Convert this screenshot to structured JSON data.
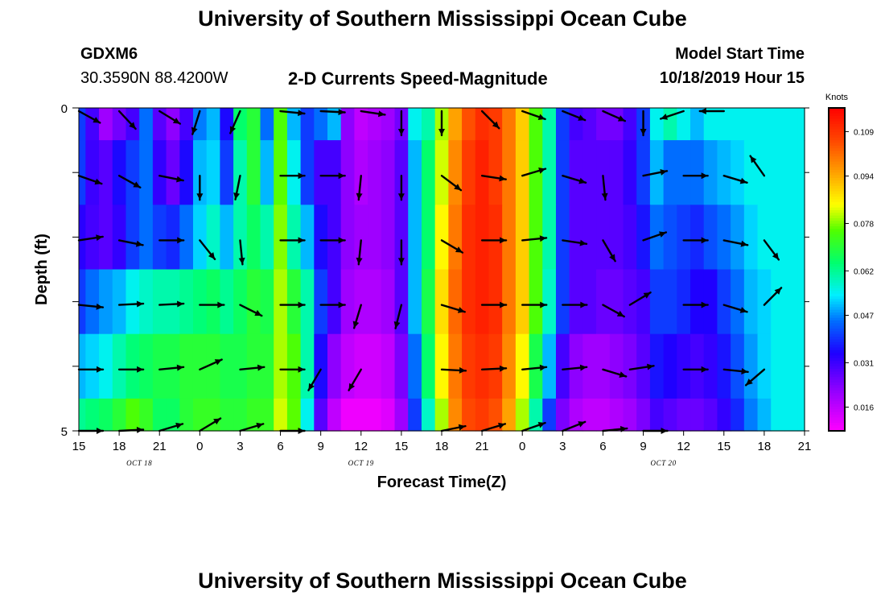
{
  "header": {
    "top_title": "University of Southern Mississippi Ocean Cube",
    "bottom_title": "University of Southern Mississippi Ocean Cube",
    "station_id": "GDXM6",
    "location": "30.3590N 88.4200W",
    "plot_title": "2-D Currents Speed-Magnitude",
    "start_label": "Model Start Time",
    "start_value": "10/18/2019 Hour 15"
  },
  "chart_data": {
    "type": "heatmap",
    "title": "2-D Currents Speed-Magnitude",
    "xlabel": "Forecast Time(Z)",
    "ylabel": "Depth (ft)",
    "ylim": [
      0,
      5
    ],
    "y_tick_labels": [
      "0",
      "",
      "",
      "",
      "",
      "5"
    ],
    "x_tick_labels": [
      "15",
      "18",
      "21",
      "0",
      "3",
      "6",
      "9",
      "12",
      "15",
      "18",
      "21",
      "0",
      "3",
      "6",
      "9",
      "12",
      "15",
      "18",
      "21"
    ],
    "x_range_hours": [
      0,
      54
    ],
    "date_labels": [
      {
        "text": "OCT 18",
        "hour": 4.5
      },
      {
        "text": "OCT 19",
        "hour": 21
      },
      {
        "text": "OCT 20",
        "hour": 43.5
      }
    ],
    "colorbar": {
      "label": "Knots",
      "ticks": [
        "0.109",
        "0.094",
        "0.078",
        "0.062",
        "0.047",
        "0.031",
        "0.016"
      ],
      "tick_values": [
        0.109,
        0.094,
        0.078,
        0.062,
        0.047,
        0.031,
        0.016
      ],
      "min": 0.008,
      "max": 0.117
    },
    "time_columns_hours": [
      0,
      1,
      2,
      3,
      4,
      5,
      6,
      7,
      8,
      9,
      10,
      11,
      12,
      13,
      14,
      15,
      16,
      17,
      18,
      19,
      20,
      21,
      22,
      23,
      24,
      25,
      26,
      27,
      28,
      29,
      30,
      31,
      32,
      33,
      34,
      35,
      36,
      37,
      38,
      39,
      40,
      41,
      42,
      43,
      44,
      45,
      46,
      47,
      48,
      49,
      50,
      51,
      52,
      53,
      54
    ],
    "depth_rows": [
      0,
      1,
      2,
      3,
      4,
      5
    ],
    "speed_knots": [
      [
        0.04,
        0.03,
        0.02,
        0.025,
        0.03,
        0.045,
        0.028,
        0.022,
        0.03,
        0.046,
        0.05,
        0.035,
        0.065,
        0.07,
        0.045,
        0.075,
        0.05,
        0.04,
        0.045,
        0.05,
        0.022,
        0.016,
        0.018,
        0.02,
        0.025,
        0.055,
        0.06,
        0.08,
        0.095,
        0.105,
        0.11,
        0.108,
        0.1,
        0.09,
        0.075,
        0.06,
        0.04,
        0.03,
        0.028,
        0.025,
        0.025,
        0.03,
        0.04,
        0.055,
        0.06,
        0.055,
        0.05,
        0.055,
        0.055,
        0.055,
        0.055,
        0.055,
        0.055,
        0.055,
        0.055
      ],
      [
        0.04,
        0.031,
        0.028,
        0.035,
        0.04,
        0.045,
        0.032,
        0.026,
        0.035,
        0.05,
        0.052,
        0.04,
        0.06,
        0.07,
        0.05,
        0.076,
        0.055,
        0.04,
        0.03,
        0.03,
        0.022,
        0.018,
        0.02,
        0.022,
        0.028,
        0.05,
        0.065,
        0.082,
        0.098,
        0.108,
        0.112,
        0.108,
        0.1,
        0.09,
        0.075,
        0.06,
        0.04,
        0.028,
        0.028,
        0.028,
        0.028,
        0.032,
        0.04,
        0.05,
        0.045,
        0.045,
        0.045,
        0.048,
        0.05,
        0.052,
        0.055,
        0.055,
        0.055,
        0.055,
        0.055
      ],
      [
        0.033,
        0.03,
        0.028,
        0.032,
        0.04,
        0.045,
        0.04,
        0.038,
        0.045,
        0.052,
        0.058,
        0.05,
        0.06,
        0.066,
        0.06,
        0.078,
        0.06,
        0.05,
        0.035,
        0.03,
        0.022,
        0.02,
        0.02,
        0.022,
        0.028,
        0.05,
        0.065,
        0.085,
        0.1,
        0.11,
        0.112,
        0.11,
        0.1,
        0.09,
        0.075,
        0.06,
        0.04,
        0.028,
        0.028,
        0.028,
        0.028,
        0.03,
        0.036,
        0.045,
        0.042,
        0.04,
        0.038,
        0.042,
        0.045,
        0.048,
        0.052,
        0.055,
        0.055,
        0.055,
        0.055
      ],
      [
        0.04,
        0.045,
        0.048,
        0.05,
        0.055,
        0.058,
        0.06,
        0.06,
        0.062,
        0.064,
        0.066,
        0.062,
        0.066,
        0.07,
        0.068,
        0.08,
        0.07,
        0.06,
        0.04,
        0.03,
        0.02,
        0.018,
        0.018,
        0.02,
        0.028,
        0.05,
        0.068,
        0.088,
        0.102,
        0.11,
        0.112,
        0.11,
        0.1,
        0.09,
        0.075,
        0.058,
        0.04,
        0.028,
        0.028,
        0.026,
        0.026,
        0.028,
        0.03,
        0.04,
        0.04,
        0.038,
        0.034,
        0.034,
        0.04,
        0.045,
        0.05,
        0.052,
        0.055,
        0.055,
        0.055
      ],
      [
        0.05,
        0.052,
        0.055,
        0.06,
        0.064,
        0.066,
        0.068,
        0.068,
        0.07,
        0.07,
        0.07,
        0.068,
        0.068,
        0.07,
        0.07,
        0.08,
        0.075,
        0.06,
        0.035,
        0.022,
        0.016,
        0.014,
        0.014,
        0.016,
        0.024,
        0.045,
        0.065,
        0.085,
        0.1,
        0.108,
        0.11,
        0.108,
        0.098,
        0.085,
        0.068,
        0.05,
        0.03,
        0.022,
        0.02,
        0.02,
        0.022,
        0.024,
        0.028,
        0.036,
        0.034,
        0.032,
        0.03,
        0.032,
        0.036,
        0.042,
        0.048,
        0.052,
        0.055,
        0.055,
        0.055
      ],
      [
        0.062,
        0.064,
        0.066,
        0.07,
        0.075,
        0.072,
        0.066,
        0.066,
        0.07,
        0.072,
        0.072,
        0.07,
        0.07,
        0.072,
        0.072,
        0.082,
        0.076,
        0.055,
        0.028,
        0.016,
        0.01,
        0.01,
        0.01,
        0.012,
        0.02,
        0.04,
        0.058,
        0.08,
        0.098,
        0.106,
        0.108,
        0.105,
        0.095,
        0.08,
        0.06,
        0.04,
        0.024,
        0.018,
        0.016,
        0.016,
        0.018,
        0.02,
        0.024,
        0.03,
        0.028,
        0.026,
        0.026,
        0.028,
        0.032,
        0.038,
        0.046,
        0.05,
        0.055,
        0.055,
        0.055
      ]
    ],
    "vectors": [
      {
        "hour": 0,
        "depth": 0.05,
        "dx": 1.0,
        "dy": 0.55
      },
      {
        "hour": 3,
        "depth": 0.05,
        "dx": 0.7,
        "dy": 0.75
      },
      {
        "hour": 6,
        "depth": 0.05,
        "dx": 0.9,
        "dy": 0.55
      },
      {
        "hour": 9,
        "depth": 0.05,
        "dx": -0.3,
        "dy": 0.95
      },
      {
        "hour": 12,
        "depth": 0.05,
        "dx": -0.4,
        "dy": 0.9
      },
      {
        "hour": 15,
        "depth": 0.05,
        "dx": 1.0,
        "dy": 0.1
      },
      {
        "hour": 18,
        "depth": 0.05,
        "dx": 1.0,
        "dy": 0.05
      },
      {
        "hour": 21,
        "depth": 0.05,
        "dx": 1.0,
        "dy": 0.15
      },
      {
        "hour": 24,
        "depth": 0.05,
        "dx": 0.0,
        "dy": 1.0
      },
      {
        "hour": 27,
        "depth": 0.05,
        "dx": 0.0,
        "dy": 1.0
      },
      {
        "hour": 30,
        "depth": 0.05,
        "dx": 0.7,
        "dy": 0.7
      },
      {
        "hour": 33,
        "depth": 0.05,
        "dx": 1.0,
        "dy": 0.35
      },
      {
        "hour": 36,
        "depth": 0.05,
        "dx": 1.0,
        "dy": 0.4
      },
      {
        "hour": 39,
        "depth": 0.05,
        "dx": 0.9,
        "dy": 0.4
      },
      {
        "hour": 42,
        "depth": 0.05,
        "dx": 0.0,
        "dy": 1.0
      },
      {
        "hour": 45,
        "depth": 0.05,
        "dx": -0.9,
        "dy": 0.3
      },
      {
        "hour": 48,
        "depth": 0.05,
        "dx": -1.0,
        "dy": 0.0
      },
      {
        "hour": 0,
        "depth": 1.05,
        "dx": 1.0,
        "dy": 0.35
      },
      {
        "hour": 3,
        "depth": 1.05,
        "dx": 0.9,
        "dy": 0.5
      },
      {
        "hour": 6,
        "depth": 1.05,
        "dx": 1.0,
        "dy": 0.2
      },
      {
        "hour": 9,
        "depth": 1.05,
        "dx": 0.0,
        "dy": 1.0
      },
      {
        "hour": 12,
        "depth": 1.05,
        "dx": -0.2,
        "dy": 1.0
      },
      {
        "hour": 15,
        "depth": 1.05,
        "dx": 1.0,
        "dy": 0.0
      },
      {
        "hour": 18,
        "depth": 1.05,
        "dx": 1.0,
        "dy": 0.0
      },
      {
        "hour": 21,
        "depth": 1.05,
        "dx": -0.1,
        "dy": 1.0
      },
      {
        "hour": 24,
        "depth": 1.05,
        "dx": 0.0,
        "dy": 1.0
      },
      {
        "hour": 27,
        "depth": 1.05,
        "dx": 0.8,
        "dy": 0.6
      },
      {
        "hour": 30,
        "depth": 1.05,
        "dx": 1.0,
        "dy": 0.15
      },
      {
        "hour": 33,
        "depth": 1.05,
        "dx": 1.0,
        "dy": -0.3
      },
      {
        "hour": 36,
        "depth": 1.05,
        "dx": 1.0,
        "dy": 0.3
      },
      {
        "hour": 39,
        "depth": 1.05,
        "dx": 0.1,
        "dy": 1.0
      },
      {
        "hour": 42,
        "depth": 1.05,
        "dx": 1.0,
        "dy": -0.2
      },
      {
        "hour": 45,
        "depth": 1.05,
        "dx": 1.0,
        "dy": 0.0
      },
      {
        "hour": 48,
        "depth": 1.05,
        "dx": 1.0,
        "dy": 0.3
      },
      {
        "hour": 51,
        "depth": 1.05,
        "dx": -0.6,
        "dy": -0.85
      },
      {
        "hour": 0,
        "depth": 2.05,
        "dx": 1.0,
        "dy": -0.15
      },
      {
        "hour": 3,
        "depth": 2.05,
        "dx": 1.0,
        "dy": 0.2
      },
      {
        "hour": 6,
        "depth": 2.05,
        "dx": 1.0,
        "dy": 0.0
      },
      {
        "hour": 9,
        "depth": 2.05,
        "dx": 0.6,
        "dy": 0.75
      },
      {
        "hour": 12,
        "depth": 2.05,
        "dx": 0.1,
        "dy": 1.0
      },
      {
        "hour": 15,
        "depth": 2.05,
        "dx": 1.0,
        "dy": 0.0
      },
      {
        "hour": 18,
        "depth": 2.05,
        "dx": 1.0,
        "dy": 0.0
      },
      {
        "hour": 21,
        "depth": 2.05,
        "dx": -0.1,
        "dy": 1.0
      },
      {
        "hour": 24,
        "depth": 2.05,
        "dx": 0.0,
        "dy": 1.0
      },
      {
        "hour": 27,
        "depth": 2.05,
        "dx": 0.85,
        "dy": 0.5
      },
      {
        "hour": 30,
        "depth": 2.05,
        "dx": 1.0,
        "dy": 0.0
      },
      {
        "hour": 33,
        "depth": 2.05,
        "dx": 1.0,
        "dy": -0.1
      },
      {
        "hour": 36,
        "depth": 2.05,
        "dx": 1.0,
        "dy": 0.15
      },
      {
        "hour": 39,
        "depth": 2.05,
        "dx": 0.5,
        "dy": 0.85
      },
      {
        "hour": 42,
        "depth": 2.05,
        "dx": 1.0,
        "dy": -0.35
      },
      {
        "hour": 45,
        "depth": 2.05,
        "dx": 1.0,
        "dy": 0.0
      },
      {
        "hour": 48,
        "depth": 2.05,
        "dx": 1.0,
        "dy": 0.2
      },
      {
        "hour": 51,
        "depth": 2.05,
        "dx": 0.6,
        "dy": 0.8
      },
      {
        "hour": 0,
        "depth": 3.05,
        "dx": 1.0,
        "dy": 0.1
      },
      {
        "hour": 3,
        "depth": 3.05,
        "dx": 1.0,
        "dy": -0.05
      },
      {
        "hour": 6,
        "depth": 3.05,
        "dx": 1.0,
        "dy": -0.05
      },
      {
        "hour": 9,
        "depth": 3.05,
        "dx": 1.0,
        "dy": 0.0
      },
      {
        "hour": 12,
        "depth": 3.05,
        "dx": 0.9,
        "dy": 0.45
      },
      {
        "hour": 15,
        "depth": 3.05,
        "dx": 1.0,
        "dy": 0.0
      },
      {
        "hour": 18,
        "depth": 3.05,
        "dx": 1.0,
        "dy": 0.0
      },
      {
        "hour": 21,
        "depth": 3.05,
        "dx": -0.3,
        "dy": 1.0
      },
      {
        "hour": 24,
        "depth": 3.05,
        "dx": -0.25,
        "dy": 1.0
      },
      {
        "hour": 27,
        "depth": 3.05,
        "dx": 1.0,
        "dy": 0.3
      },
      {
        "hour": 30,
        "depth": 3.05,
        "dx": 1.0,
        "dy": 0.0
      },
      {
        "hour": 33,
        "depth": 3.05,
        "dx": 1.0,
        "dy": 0.0
      },
      {
        "hour": 36,
        "depth": 3.05,
        "dx": 1.0,
        "dy": 0.0
      },
      {
        "hour": 39,
        "depth": 3.05,
        "dx": 1.0,
        "dy": 0.55
      },
      {
        "hour": 41,
        "depth": 3.05,
        "dx": 1.0,
        "dy": -0.6
      },
      {
        "hour": 45,
        "depth": 3.05,
        "dx": 1.0,
        "dy": 0.0
      },
      {
        "hour": 48,
        "depth": 3.05,
        "dx": 1.0,
        "dy": 0.3
      },
      {
        "hour": 51,
        "depth": 3.05,
        "dx": 0.7,
        "dy": -0.7
      },
      {
        "hour": 0,
        "depth": 4.05,
        "dx": 1.0,
        "dy": 0.0
      },
      {
        "hour": 3,
        "depth": 4.05,
        "dx": 1.0,
        "dy": 0.0
      },
      {
        "hour": 6,
        "depth": 4.05,
        "dx": 1.0,
        "dy": -0.1
      },
      {
        "hour": 9,
        "depth": 4.05,
        "dx": 1.0,
        "dy": -0.45
      },
      {
        "hour": 12,
        "depth": 4.05,
        "dx": 1.0,
        "dy": -0.1
      },
      {
        "hour": 15,
        "depth": 4.05,
        "dx": 1.0,
        "dy": 0.0
      },
      {
        "hour": 18,
        "depth": 4.05,
        "dx": -0.5,
        "dy": 0.85
      },
      {
        "hour": 21,
        "depth": 4.05,
        "dx": -0.5,
        "dy": 0.85
      },
      {
        "hour": 27,
        "depth": 4.05,
        "dx": 1.0,
        "dy": 0.05
      },
      {
        "hour": 30,
        "depth": 4.05,
        "dx": 1.0,
        "dy": -0.05
      },
      {
        "hour": 33,
        "depth": 4.05,
        "dx": 1.0,
        "dy": -0.1
      },
      {
        "hour": 36,
        "depth": 4.05,
        "dx": 1.0,
        "dy": -0.1
      },
      {
        "hour": 39,
        "depth": 4.05,
        "dx": 1.0,
        "dy": 0.3
      },
      {
        "hour": 41,
        "depth": 4.05,
        "dx": 1.0,
        "dy": -0.15
      },
      {
        "hour": 45,
        "depth": 4.05,
        "dx": 1.0,
        "dy": 0.0
      },
      {
        "hour": 48,
        "depth": 4.05,
        "dx": 1.0,
        "dy": 0.1
      },
      {
        "hour": 51,
        "depth": 4.05,
        "dx": -0.7,
        "dy": 0.6
      },
      {
        "hour": 0,
        "depth": 5.0,
        "dx": 1.0,
        "dy": 0.0
      },
      {
        "hour": 3,
        "depth": 5.0,
        "dx": 1.0,
        "dy": -0.05
      },
      {
        "hour": 6,
        "depth": 5.0,
        "dx": 1.0,
        "dy": -0.3
      },
      {
        "hour": 9,
        "depth": 5.0,
        "dx": 1.0,
        "dy": -0.6
      },
      {
        "hour": 12,
        "depth": 5.0,
        "dx": 1.0,
        "dy": -0.3
      },
      {
        "hour": 15,
        "depth": 5.0,
        "dx": 1.0,
        "dy": 0.0
      },
      {
        "hour": 27,
        "depth": 5.0,
        "dx": 1.0,
        "dy": -0.2
      },
      {
        "hour": 30,
        "depth": 5.0,
        "dx": 1.0,
        "dy": -0.3
      },
      {
        "hour": 33,
        "depth": 5.0,
        "dx": 1.0,
        "dy": -0.35
      },
      {
        "hour": 36,
        "depth": 5.0,
        "dx": 1.0,
        "dy": -0.4
      },
      {
        "hour": 39,
        "depth": 5.0,
        "dx": 1.0,
        "dy": -0.1
      },
      {
        "hour": 42,
        "depth": 5.0,
        "dx": 1.0,
        "dy": 0.0
      }
    ]
  }
}
